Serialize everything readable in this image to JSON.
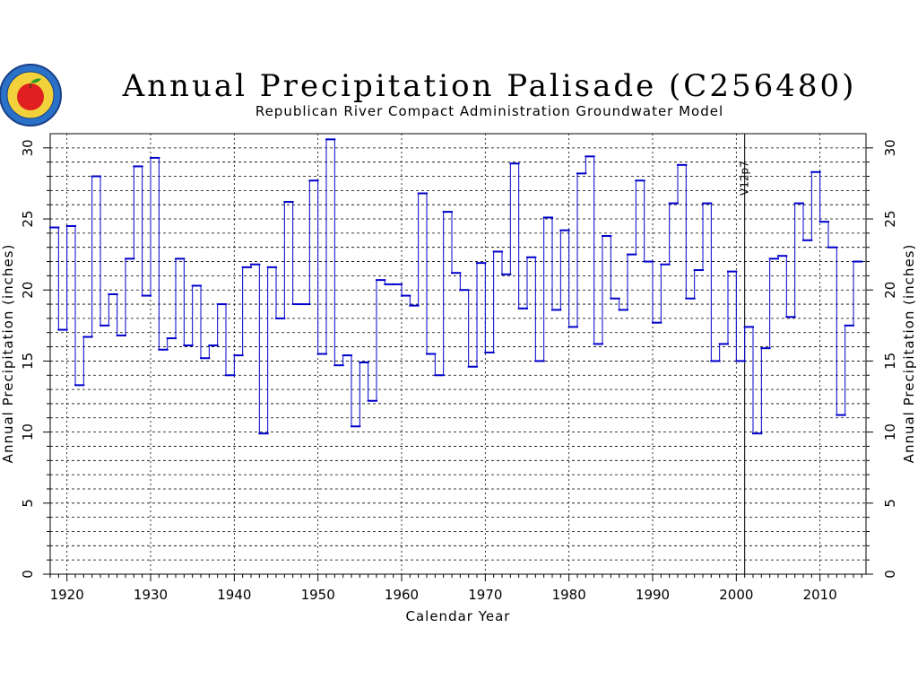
{
  "chart_data": {
    "type": "line",
    "style": "step",
    "title": "Annual Precipitation Palisade (C256480)",
    "subtitle": "Republican River Compact Administration Groundwater Model",
    "xlabel": "Calendar Year",
    "ylabel": "Annual Precipitation (inches)",
    "xlim": [
      1918,
      2015.5
    ],
    "ylim": [
      0,
      31
    ],
    "xticks": [
      1920,
      1930,
      1940,
      1950,
      1960,
      1970,
      1980,
      1990,
      2000,
      2010
    ],
    "yticks": [
      0,
      5,
      10,
      15,
      20,
      25,
      30
    ],
    "grid": true,
    "line_color": "#0000cc",
    "marker": {
      "label": "V12p7",
      "x": 2001
    },
    "series": [
      {
        "x": [
          1918,
          1919,
          1920,
          1921,
          1922,
          1923,
          1924,
          1925,
          1926,
          1927,
          1928,
          1929,
          1930,
          1931,
          1932,
          1933,
          1934,
          1935,
          1936,
          1937,
          1938,
          1939,
          1940,
          1941,
          1942,
          1943,
          1944,
          1945,
          1946,
          1947,
          1948,
          1949,
          1950,
          1951,
          1952,
          1953,
          1954,
          1955,
          1956,
          1957,
          1958,
          1959,
          1960,
          1961,
          1962,
          1963,
          1964,
          1965,
          1966,
          1967,
          1968,
          1969,
          1970,
          1971,
          1972,
          1973,
          1974,
          1975,
          1976,
          1977,
          1978,
          1979,
          1980,
          1981,
          1982,
          1983,
          1984,
          1985,
          1986,
          1987,
          1988,
          1989,
          1990,
          1991,
          1992,
          1993,
          1994,
          1995,
          1996,
          1997,
          1998,
          1999,
          2000,
          2001,
          2002,
          2003,
          2004,
          2005,
          2006,
          2007,
          2008,
          2009,
          2010,
          2011,
          2012,
          2013,
          2014
        ],
        "y": [
          24.4,
          17.2,
          24.5,
          13.3,
          16.7,
          28.0,
          17.5,
          19.7,
          16.8,
          22.2,
          28.7,
          19.6,
          29.3,
          15.8,
          16.6,
          22.2,
          16.1,
          20.3,
          15.2,
          16.1,
          19.0,
          14.0,
          15.4,
          21.6,
          21.8,
          9.9,
          21.6,
          18.0,
          26.2,
          19.0,
          19.0,
          27.7,
          15.5,
          30.6,
          14.7,
          15.4,
          10.4,
          14.9,
          12.2,
          20.7,
          20.4,
          20.4,
          19.6,
          18.9,
          26.8,
          15.5,
          14.0,
          25.5,
          21.2,
          20.0,
          14.6,
          21.9,
          15.6,
          22.7,
          21.1,
          28.9,
          18.7,
          22.3,
          15.0,
          25.1,
          18.6,
          24.2,
          17.4,
          28.2,
          29.4,
          16.2,
          23.8,
          19.4,
          18.6,
          22.5,
          27.7,
          22.0,
          17.7,
          21.8,
          26.1,
          28.8,
          19.4,
          21.4,
          26.1,
          15.0,
          16.2,
          21.3,
          15.0,
          17.4,
          9.9,
          15.9,
          22.2,
          22.4,
          18.1,
          26.1,
          23.5,
          28.3,
          24.8,
          23.0,
          11.2,
          17.5,
          22.0
        ]
      }
    ]
  }
}
